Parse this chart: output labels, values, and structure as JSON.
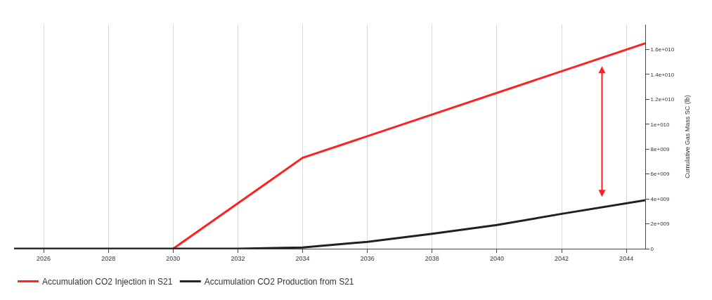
{
  "chart_data": {
    "type": "line",
    "ylabel": "Cumulative Gas Mass SC (lb)",
    "xlim": [
      "2025-02",
      "2044-08"
    ],
    "xticks": [
      {
        "value": "2026",
        "label": "2026"
      },
      {
        "value": "2028",
        "label": "2028"
      },
      {
        "value": "2030",
        "label": "2030"
      },
      {
        "value": "2032",
        "label": "2032"
      },
      {
        "value": "2034",
        "label": "2034"
      },
      {
        "value": "2036",
        "label": "2036"
      },
      {
        "value": "2038",
        "label": "2038"
      },
      {
        "value": "2040",
        "label": "2040"
      },
      {
        "value": "2042",
        "label": "2042"
      },
      {
        "value": "2044",
        "label": "2044"
      }
    ],
    "ylim": [
      0,
      18000000000
    ],
    "yticks": [
      0,
      {
        "value": 2000000000,
        "label": "2e+009"
      },
      {
        "value": 4000000000,
        "label": "4e+009"
      },
      {
        "value": 6000000000,
        "label": "6e+009"
      },
      {
        "value": 8000000000,
        "label": "8e+009"
      },
      {
        "value": 10000000000,
        "label": "1e+010"
      },
      {
        "value": 12000000000,
        "label": "1.2e+010"
      },
      {
        "value": 14000000000,
        "label": "1.4e+010"
      },
      {
        "value": 16000000000,
        "label": "1.6e+010"
      }
    ],
    "grid": "x",
    "legend": "bottom left",
    "marker": "none",
    "series": [
      {
        "name": "Accumulation CO2 Injection in S21",
        "color": "#ff2020",
        "x": [
          "2030",
          "2034",
          "2044-08"
        ],
        "values": [
          0,
          7300000000,
          16500000000
        ]
      },
      {
        "name": "Accumulation CO2 Production from S21",
        "color": "#202020",
        "x": [
          "2025-02",
          "2032",
          "2034",
          "2036",
          "2038",
          "2040",
          "2042",
          "2044-08"
        ],
        "values": [
          0,
          0,
          100000000,
          550000000,
          1200000000,
          1900000000,
          2800000000,
          3900000000
        ]
      }
    ]
  }
}
